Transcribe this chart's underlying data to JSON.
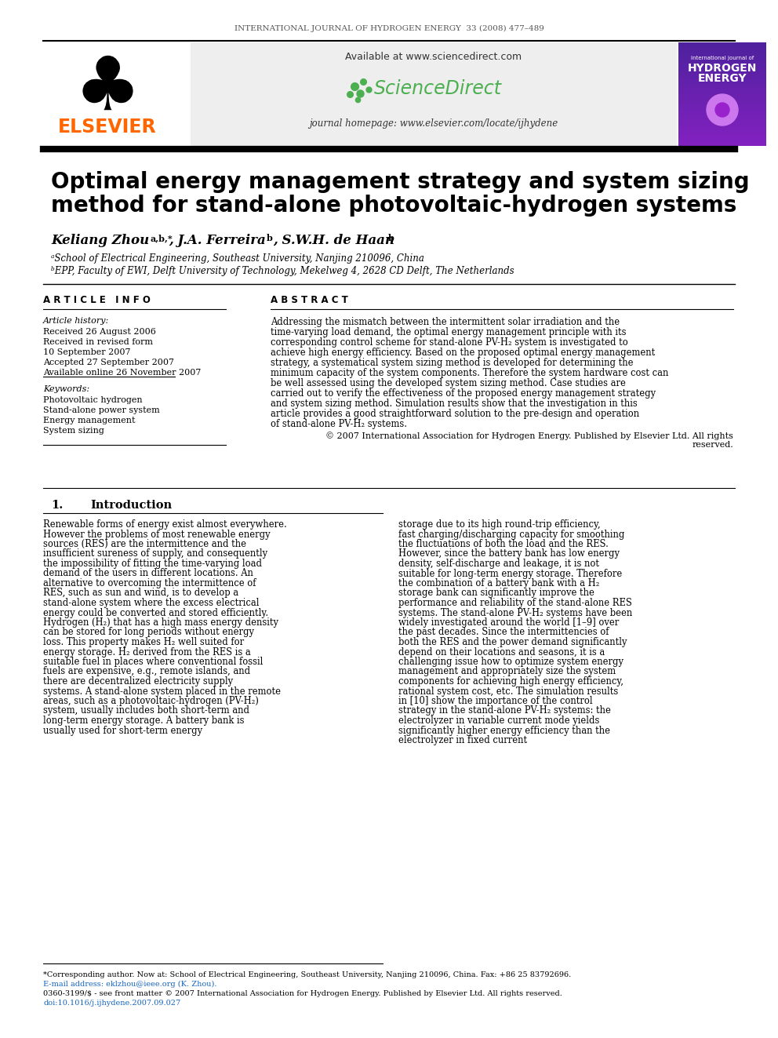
{
  "journal_header": "INTERNATIONAL JOURNAL OF HYDROGEN ENERGY  33 (2008) 477–489",
  "elsevier_text": "ELSEVIER",
  "available_text": "Available at www.sciencedirect.com",
  "sciencedirect_text": "ScienceDirect",
  "journal_homepage": "journal homepage: www.elsevier.com/locate/ijhydene",
  "paper_title_line1": "Optimal energy management strategy and system sizing",
  "paper_title_line2": "method for stand-alone photovoltaic-hydrogen systems",
  "article_info_header": "A R T I C L E   I N F O",
  "abstract_header": "A B S T R A C T",
  "article_history_label": "Article history:",
  "received1": "Received 26 August 2006",
  "received2": "Received in revised form",
  "received2_date": "10 September 2007",
  "accepted": "Accepted 27 September 2007",
  "available_online": "Available online 26 November 2007",
  "keywords_label": "Keywords:",
  "kw1": "Photovoltaic hydrogen",
  "kw2": "Stand-alone power system",
  "kw3": "Energy management",
  "kw4": "System sizing",
  "abstract_text": "Addressing the mismatch between the intermittent solar irradiation and the time-varying load demand, the optimal energy management principle with its corresponding control scheme for stand-alone PV-H₂ system is investigated to achieve high energy efficiency. Based on the proposed optimal energy management strategy, a systematical system sizing method is developed for determining the minimum capacity of the system components. Therefore the system hardware cost can be well assessed using the developed system sizing method. Case studies are carried out to verify the effectiveness of the proposed energy management strategy and system sizing method. Simulation results show that the investigation in this article provides a good straightforward solution to the pre-design and operation of stand-alone PV-H₂ systems.",
  "abstract_copyright": "© 2007 International Association for Hydrogen Energy. Published by Elsevier Ltd. All rights reserved.",
  "intro_col1": "Renewable forms of energy exist almost everywhere. However the problems of most renewable energy sources (RES) are the intermittence and the insufficient sureness of supply, and consequently the impossibility of fitting the time-varying load demand of the users in different locations. An alternative to overcoming the intermittence of RES, such as sun and wind, is to develop a stand-alone system where the excess electrical energy could be converted and stored efficiently. Hydrogen (H₂) that has a high mass energy density can be stored for long periods without energy loss. This property makes H₂ well suited for energy storage. H₂ derived from the RES is a suitable fuel in places where conventional fossil fuels are expensive, e.g., remote islands, and there are decentralized electricity supply systems. A stand-alone system placed in the remote areas, such as a photovoltaic-hydrogen (PV-H₂) system, usually includes both short-term and long-term energy storage. A battery bank is usually used for short-term energy",
  "intro_col2": "storage due to its high round-trip efficiency, fast charging/discharging capacity for smoothing the fluctuations of both the load and the RES. However, since the battery bank has low energy density, self-discharge and leakage, it is not suitable for long-term energy storage. Therefore the combination of a battery bank with a H₂ storage bank can significantly improve the performance and reliability of the stand-alone RES systems. The stand-alone PV-H₂ systems have been widely investigated around the world [1–9] over the past decades. Since the intermittencies of both the RES and the power demand significantly depend on their locations and seasons, it is a challenging issue how to optimize system energy management and appropriately size the system components for achieving high energy efficiency, rational system cost, etc. The simulation results in [10] show the importance of the control strategy in the stand-alone PV-H₂ systems: the electrolyzer in variable current mode yields significantly higher energy efficiency than the electrolyzer in fixed current",
  "footnote_star": "*Corresponding author. Now at: School of Electrical Engineering, Southeast University, Nanjing 210096, China. Fax: +86 25 83792696.",
  "footnote_email": "E-mail address: eklzhou@ieee.org (K. Zhou).",
  "footnote_issn": "0360-3199/$ - see front matter © 2007 International Association for Hydrogen Energy. Published by Elsevier Ltd. All rights reserved.",
  "footnote_doi": "doi:10.1016/j.ijhydene.2007.09.027",
  "elsevier_color": "#ff6600",
  "sciencedirect_color": "#4caf50",
  "link_color": "#1565c0",
  "journal_cover_bg": "#5533aa"
}
